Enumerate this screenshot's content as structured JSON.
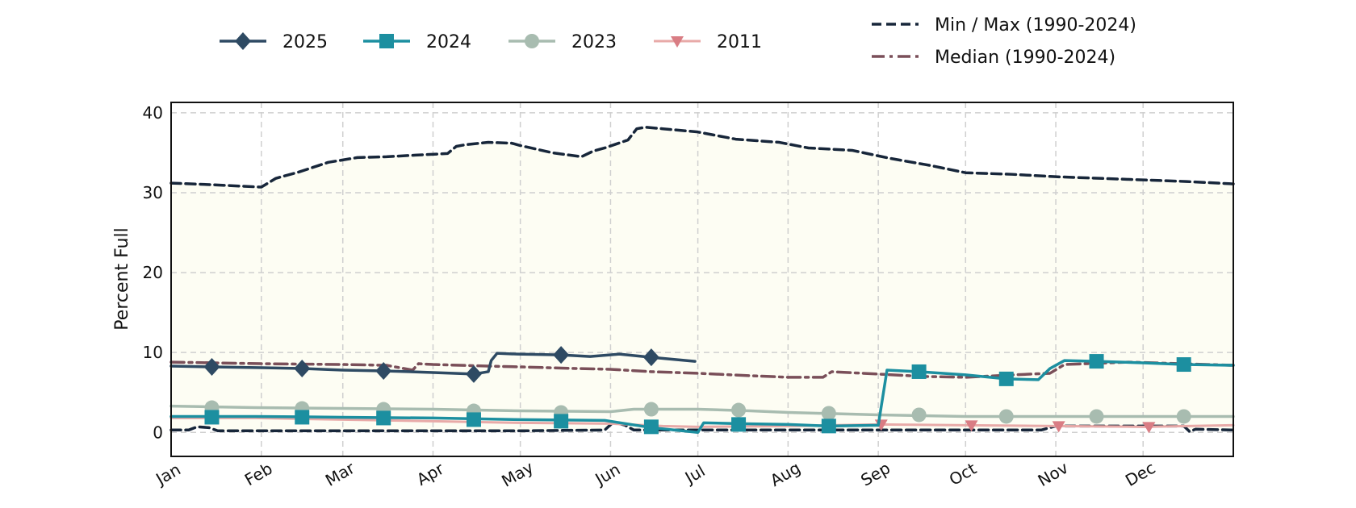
{
  "chart_data": {
    "type": "line",
    "ylabel": "Percent Full",
    "xlabel": "",
    "ylim": [
      -3,
      41.3
    ],
    "xlim": [
      1,
      366
    ],
    "yticks": [
      0,
      10,
      20,
      30,
      40
    ],
    "xticks": [
      {
        "label": "Jan",
        "day": 1
      },
      {
        "label": "Feb",
        "day": 32
      },
      {
        "label": "Mar",
        "day": 60
      },
      {
        "label": "Apr",
        "day": 91
      },
      {
        "label": "May",
        "day": 121
      },
      {
        "label": "Jun",
        "day": 152
      },
      {
        "label": "Jul",
        "day": 182
      },
      {
        "label": "Aug",
        "day": 213
      },
      {
        "label": "Sep",
        "day": 244
      },
      {
        "label": "Oct",
        "day": 274
      },
      {
        "label": "Nov",
        "day": 305
      },
      {
        "label": "Dec",
        "day": 335
      }
    ],
    "grid": true,
    "legend": {
      "placement": "top",
      "entries": [
        {
          "label": "2025",
          "series": "2025"
        },
        {
          "label": "2024",
          "series": "2024"
        },
        {
          "label": "2023",
          "series": "2023"
        },
        {
          "label": "2011",
          "series": "2011"
        },
        {
          "label": "Min / Max (1990-2024)",
          "series": "max"
        },
        {
          "label": "Median (1990-2024)",
          "series": "median"
        }
      ]
    },
    "band": {
      "lower": "min",
      "upper": "max",
      "color": "#fdfdf3"
    },
    "series": [
      {
        "id": "max",
        "color": "#17263a",
        "style": "dashed",
        "width": 3.5,
        "x": [
          1,
          15,
          32,
          37,
          45,
          55,
          65,
          75,
          85,
          96,
          99,
          102,
          110,
          118,
          121,
          132,
          142,
          146,
          150,
          158,
          161,
          164,
          170,
          182,
          195,
          210,
          220,
          235,
          248,
          262,
          274,
          290,
          305,
          320,
          335,
          350,
          366
        ],
        "y": [
          31.2,
          31.0,
          30.7,
          31.8,
          32.6,
          33.8,
          34.4,
          34.5,
          34.7,
          34.9,
          35.8,
          36.0,
          36.3,
          36.2,
          35.9,
          35.0,
          34.5,
          35.2,
          35.6,
          36.6,
          38.0,
          38.2,
          38.0,
          37.6,
          36.7,
          36.3,
          35.6,
          35.3,
          34.3,
          33.4,
          32.5,
          32.3,
          32.0,
          31.8,
          31.6,
          31.4,
          31.1
        ]
      },
      {
        "id": "min",
        "color": "#17263a",
        "style": "dashed",
        "width": 3.5,
        "x": [
          1,
          7,
          10,
          14,
          17,
          21,
          32,
          60,
          91,
          121,
          150,
          153,
          157,
          160,
          182,
          213,
          244,
          274,
          300,
          305,
          335,
          349,
          351,
          353,
          366
        ],
        "y": [
          0.3,
          0.3,
          0.7,
          0.6,
          0.2,
          0.2,
          0.2,
          0.2,
          0.2,
          0.2,
          0.3,
          1.3,
          0.9,
          0.3,
          0.3,
          0.3,
          0.3,
          0.3,
          0.3,
          0.8,
          0.8,
          0.8,
          0.1,
          0.4,
          0.3
        ]
      },
      {
        "id": "median",
        "name": "Median (1990-2024)",
        "color": "#7a4f59",
        "style": "dashdot",
        "width": 3.5,
        "x": [
          1,
          32,
          60,
          75,
          84,
          86,
          91,
          110,
          121,
          140,
          152,
          166,
          182,
          200,
          213,
          225,
          228,
          244,
          260,
          274,
          290,
          303,
          308,
          330,
          366
        ],
        "y": [
          8.8,
          8.6,
          8.5,
          8.4,
          7.8,
          8.6,
          8.5,
          8.3,
          8.2,
          8.0,
          7.9,
          7.6,
          7.4,
          7.1,
          6.9,
          6.9,
          7.6,
          7.3,
          7.0,
          6.9,
          7.2,
          7.4,
          8.5,
          8.8,
          8.4
        ]
      },
      {
        "id": "2011",
        "name": "2011",
        "color": "#d97d84",
        "line_color": "#e8aaa8",
        "style": "solid",
        "width": 3,
        "marker": "triangle-down",
        "x": [
          1,
          30,
          60,
          91,
          121,
          152,
          170,
          182,
          213,
          244,
          274,
          305,
          335,
          366
        ],
        "y": [
          1.8,
          1.8,
          1.6,
          1.4,
          1.2,
          1.1,
          0.8,
          0.7,
          0.8,
          1.0,
          0.9,
          0.8,
          0.7,
          0.9
        ],
        "markers_x": [
          245,
          276,
          306,
          337
        ],
        "markers_y": [
          1.0,
          0.9,
          0.8,
          0.7
        ]
      },
      {
        "id": "2023",
        "name": "2023",
        "color": "#a8bcb0",
        "style": "solid",
        "width": 3.5,
        "marker": "circle",
        "x": [
          1,
          30,
          60,
          91,
          121,
          152,
          160,
          182,
          200,
          213,
          244,
          274,
          305,
          335,
          366
        ],
        "y": [
          3.3,
          3.1,
          3.0,
          2.9,
          2.7,
          2.6,
          2.9,
          2.9,
          2.7,
          2.5,
          2.2,
          2.0,
          2.0,
          2.0,
          2.0
        ],
        "markers_x": [
          15,
          46,
          74,
          105,
          135,
          166,
          196,
          227,
          258,
          288,
          319,
          349
        ],
        "markers_y": [
          3.1,
          3.0,
          2.9,
          2.7,
          2.5,
          2.9,
          2.8,
          2.4,
          2.2,
          2.0,
          2.0,
          2.0
        ]
      },
      {
        "id": "2024",
        "name": "2024",
        "color": "#1c8fa0",
        "style": "solid",
        "width": 3.5,
        "marker": "square",
        "x": [
          1,
          30,
          60,
          91,
          121,
          150,
          166,
          182,
          184,
          196,
          213,
          227,
          244,
          247,
          258,
          274,
          288,
          299,
          303,
          308,
          319,
          335,
          349,
          366
        ],
        "y": [
          2.0,
          2.0,
          1.9,
          1.8,
          1.6,
          1.5,
          0.6,
          0.0,
          1.2,
          1.1,
          1.0,
          0.8,
          0.9,
          7.8,
          7.6,
          7.2,
          6.7,
          6.6,
          8.0,
          9.0,
          8.9,
          8.7,
          8.5,
          8.4
        ],
        "markers_x": [
          15,
          46,
          74,
          105,
          135,
          166,
          196,
          227,
          258,
          288,
          319,
          349
        ],
        "markers_y": [
          1.9,
          1.9,
          1.8,
          1.6,
          1.4,
          0.7,
          1.0,
          0.8,
          7.6,
          6.7,
          8.9,
          8.5
        ]
      },
      {
        "id": "2025",
        "name": "2025",
        "color": "#2e4a63",
        "style": "solid",
        "width": 3.5,
        "marker": "diamond",
        "x": [
          1,
          15,
          32,
          46,
          60,
          74,
          91,
          105,
          110,
          111,
          113,
          120,
          135,
          145,
          155,
          166,
          181
        ],
        "y": [
          8.3,
          8.2,
          8.1,
          8.0,
          7.8,
          7.7,
          7.5,
          7.3,
          7.6,
          9.0,
          9.9,
          9.8,
          9.7,
          9.5,
          9.8,
          9.4,
          8.9
        ],
        "markers_x": [
          15,
          46,
          74,
          105,
          135,
          166
        ],
        "markers_y": [
          8.2,
          8.0,
          7.7,
          7.3,
          9.7,
          9.4
        ]
      }
    ]
  }
}
